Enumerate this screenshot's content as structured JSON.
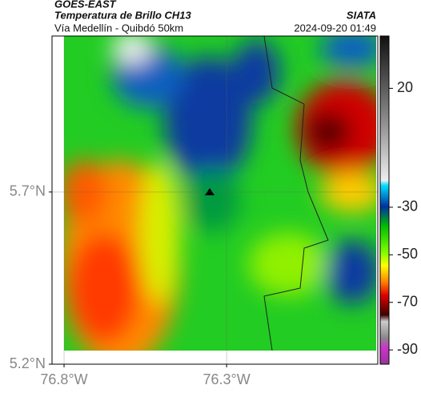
{
  "header": {
    "source": "GOES-EAST",
    "title": "Temperatura de Brillo CH13",
    "brand": "SIATA",
    "subtitle": "Vía Medellín - Quibdó 50km",
    "datetime": "2024-09-20 01:49"
  },
  "map": {
    "xlim": [
      -76.837,
      -75.835
    ],
    "ylim": [
      5.2,
      6.153
    ],
    "xticks": [
      {
        "value": -76.8,
        "label": "76.8°W"
      },
      {
        "value": -76.3,
        "label": "76.3°W"
      }
    ],
    "yticks": [
      {
        "value": 5.2,
        "label": "5.2°N"
      },
      {
        "value": 5.7,
        "label": "5.7°N"
      }
    ],
    "colorbar": {
      "clim": [
        42,
        -96
      ],
      "ticks": [
        20,
        -30,
        -50,
        -70,
        -90
      ]
    }
  }
}
